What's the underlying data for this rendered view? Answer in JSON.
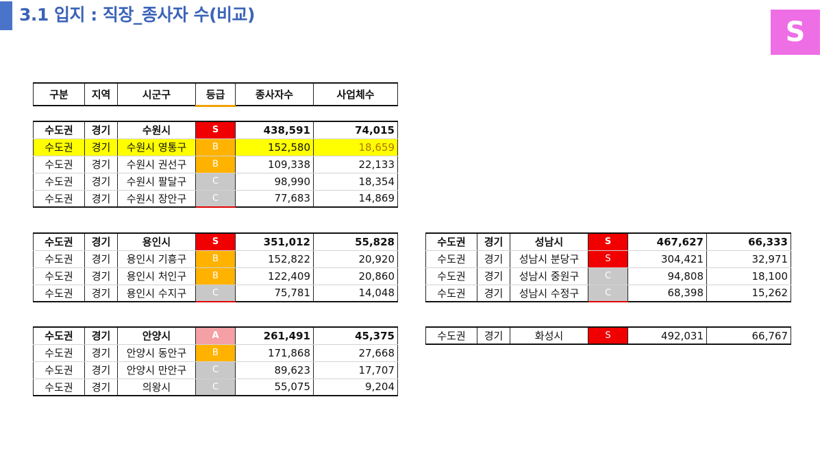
{
  "title": "3.1 입지 : 직장_종사자 수(비교)",
  "badge": "S",
  "header": [
    "구분",
    "지역",
    "시군구",
    "등급",
    "종사자수",
    "사업체수"
  ],
  "tables": [
    {
      "rows": [
        [
          "수도권",
          "경기",
          "수원시",
          "S",
          "438,591",
          "74,015"
        ],
        [
          "수도권",
          "경기",
          "수원시 영통구",
          "B",
          "152,580",
          "18,659"
        ],
        [
          "수도권",
          "경기",
          "수원시 권선구",
          "B",
          "109,338",
          "22,133"
        ],
        [
          "수도권",
          "경기",
          "수원시 팔달구",
          "C",
          "98,990",
          "18,354"
        ],
        [
          "수도권",
          "경기",
          "수원시 장안구",
          "C",
          "77,683",
          "14,869"
        ]
      ]
    },
    {
      "rows": [
        [
          "수도권",
          "경기",
          "용인시",
          "S",
          "351,012",
          "55,828"
        ],
        [
          "수도권",
          "경기",
          "용인시 기흥구",
          "B",
          "152,822",
          "20,920"
        ],
        [
          "수도권",
          "경기",
          "용인시 처인구",
          "B",
          "122,409",
          "20,860"
        ],
        [
          "수도권",
          "경기",
          "용인시 수지구",
          "C",
          "75,781",
          "14,048"
        ]
      ]
    },
    {
      "rows": [
        [
          "수도권",
          "경기",
          "안양시",
          "A",
          "261,491",
          "45,375"
        ],
        [
          "수도권",
          "경기",
          "안양시 동안구",
          "B",
          "171,868",
          "27,668"
        ],
        [
          "수도권",
          "경기",
          "안양시 만안구",
          "C",
          "89,623",
          "17,707"
        ],
        [
          "수도권",
          "경기",
          "의왕시",
          "C",
          "55,075",
          "9,204"
        ]
      ]
    },
    {
      "rows": [
        [
          "수도권",
          "경기",
          "성남시",
          "S",
          "467,627",
          "66,333"
        ],
        [
          "수도권",
          "경기",
          "성남시 분당구",
          "S",
          "304,421",
          "32,971"
        ],
        [
          "수도권",
          "경기",
          "성남시 중원구",
          "C",
          "94,808",
          "18,100"
        ],
        [
          "수도권",
          "경기",
          "성남시 수정구",
          "C",
          "68,398",
          "15,262"
        ]
      ]
    },
    {
      "rows": [
        [
          "수도권",
          "경기",
          "화성시",
          "S",
          "492,031",
          "66,767"
        ]
      ]
    }
  ]
}
